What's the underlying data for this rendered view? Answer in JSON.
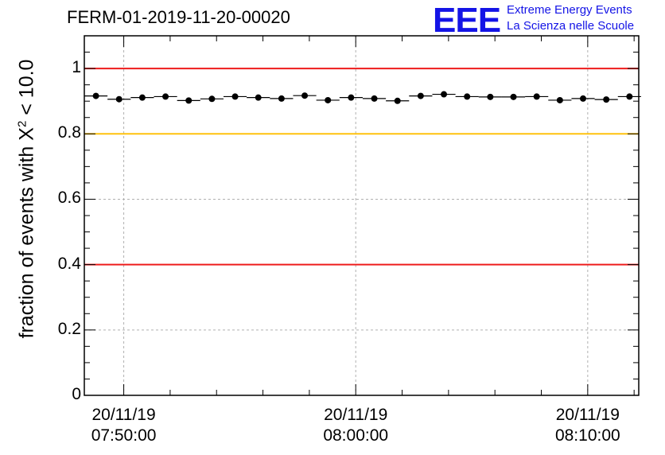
{
  "title": "FERM-01-2019-11-20-00020",
  "logo": {
    "mark": "EEE",
    "line1": "Extreme Energy Events",
    "line2": "La Scienza nelle Scuole"
  },
  "chart_data": {
    "type": "scatter",
    "title": "FERM-01-2019-11-20-00020",
    "ylabel_prefix": "fraction of events with ",
    "ylabel_symbol": "X",
    "ylabel_sup": "2",
    "ylabel_suffix": " < 10.0",
    "ylim": [
      0,
      1.1
    ],
    "yticks": [
      {
        "value": 0,
        "label": "0"
      },
      {
        "value": 0.2,
        "label": "0.2"
      },
      {
        "value": 0.4,
        "label": "0.4"
      },
      {
        "value": 0.6,
        "label": "0.6"
      },
      {
        "value": 0.8,
        "label": "0.8"
      },
      {
        "value": 1.0,
        "label": "1"
      }
    ],
    "xlim_minutes": [
      -1.7,
      22.2
    ],
    "xticks": [
      {
        "minute": 0,
        "date": "20/11/19",
        "time": "07:50:00"
      },
      {
        "minute": 10,
        "date": "20/11/19",
        "time": "08:00:00"
      },
      {
        "minute": 20,
        "date": "20/11/19",
        "time": "08:10:00"
      }
    ],
    "grid": true,
    "reference_lines": [
      {
        "y": 1.0,
        "color": "#ee1c1c"
      },
      {
        "y": 0.8,
        "color": "#ffc20e"
      },
      {
        "y": 0.4,
        "color": "#ee1c1c"
      }
    ],
    "bin_width_minutes": 1.0,
    "x_start_minutes": -1.2,
    "values": [
      0.916,
      0.906,
      0.911,
      0.914,
      0.902,
      0.907,
      0.914,
      0.911,
      0.908,
      0.917,
      0.903,
      0.911,
      0.908,
      0.901,
      0.916,
      0.921,
      0.914,
      0.913,
      0.913,
      0.914,
      0.903,
      0.908,
      0.905,
      0.914
    ]
  }
}
